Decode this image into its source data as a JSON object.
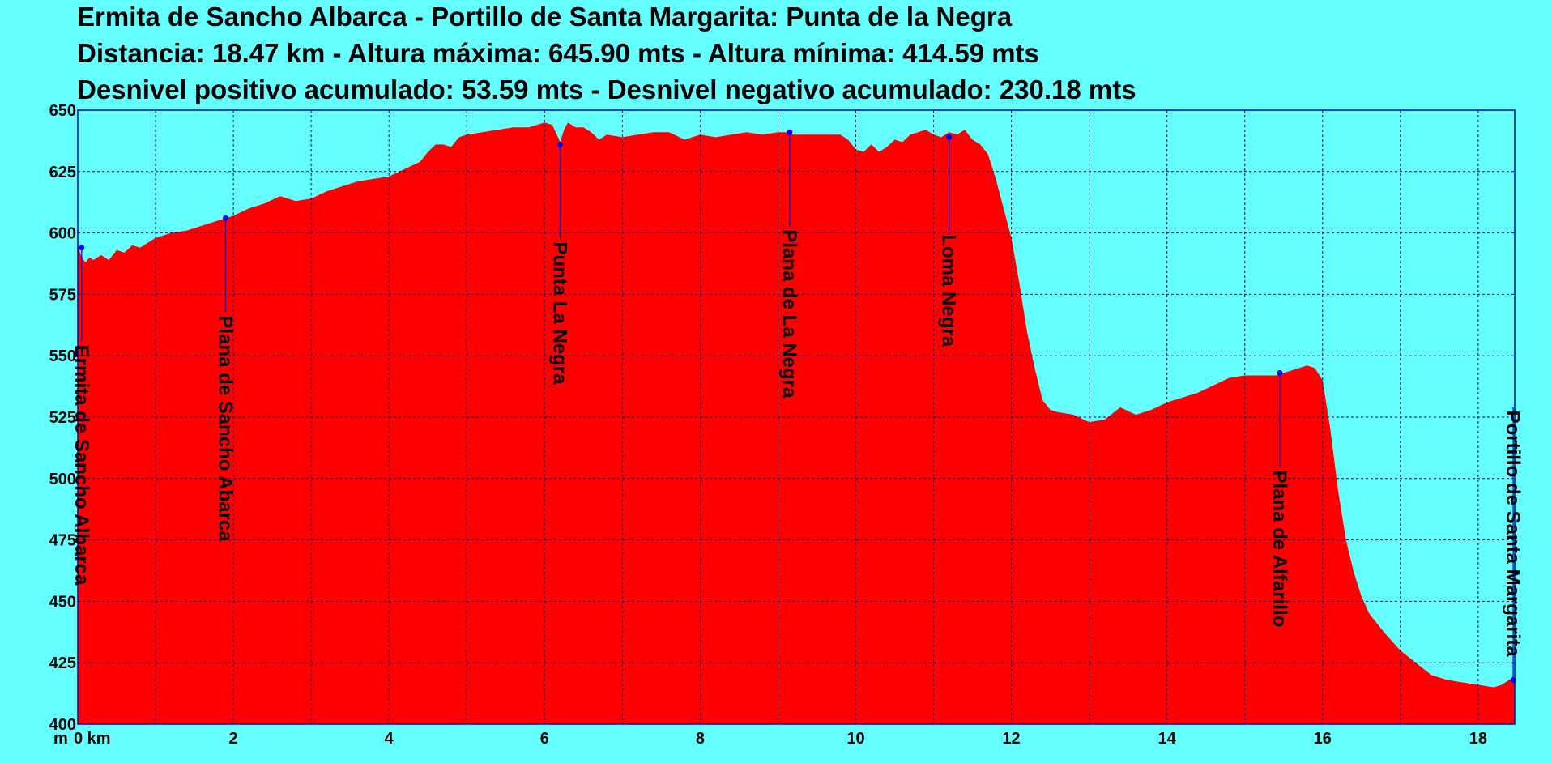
{
  "chart_data": {
    "type": "area",
    "title_lines": [
      "Ermita de Sancho Albarca - Portillo de Santa Margarita: Punta de la Negra",
      "Distancia: 18.47 km - Altura máxima: 645.90 mts - Altura mínima: 414.59 mts",
      "Desnivel positivo acumulado: 53.59 mts - Desnivel negativo acumulado: 230.18 mts"
    ],
    "y_unit_label": "m",
    "x_unit_label": "0 km",
    "xlim": [
      0,
      18.47
    ],
    "ylim": [
      400,
      650
    ],
    "x_ticks": [
      2,
      4,
      6,
      8,
      10,
      12,
      14,
      16,
      18
    ],
    "y_ticks": [
      650,
      625,
      600,
      575,
      550,
      525,
      500,
      475,
      450,
      425,
      400
    ],
    "grid_x": [
      1,
      2,
      3,
      4,
      5,
      6,
      7,
      8,
      9,
      10,
      11,
      12,
      13,
      14,
      15,
      16,
      17,
      18
    ],
    "grid": true,
    "colors": {
      "fill": "#ff0000",
      "background": "#66ffff",
      "grid": "#000080",
      "waypoint": "#0000ff"
    },
    "x": [
      0,
      0.05,
      0.1,
      0.15,
      0.2,
      0.3,
      0.4,
      0.5,
      0.6,
      0.7,
      0.8,
      0.9,
      1.0,
      1.2,
      1.4,
      1.6,
      1.8,
      2.0,
      2.2,
      2.4,
      2.6,
      2.8,
      3.0,
      3.2,
      3.4,
      3.6,
      3.8,
      4.0,
      4.2,
      4.4,
      4.5,
      4.6,
      4.7,
      4.8,
      4.9,
      5.0,
      5.2,
      5.4,
      5.6,
      5.8,
      6.0,
      6.1,
      6.2,
      6.25,
      6.3,
      6.4,
      6.5,
      6.6,
      6.7,
      6.8,
      7.0,
      7.2,
      7.4,
      7.6,
      7.8,
      8.0,
      8.2,
      8.4,
      8.6,
      8.8,
      9.0,
      9.1,
      9.2,
      9.4,
      9.6,
      9.8,
      9.9,
      10.0,
      10.1,
      10.2,
      10.3,
      10.4,
      10.5,
      10.6,
      10.7,
      10.8,
      10.9,
      11.0,
      11.1,
      11.2,
      11.3,
      11.4,
      11.5,
      11.6,
      11.7,
      11.8,
      11.9,
      12.0,
      12.1,
      12.2,
      12.3,
      12.4,
      12.5,
      12.6,
      12.8,
      13.0,
      13.2,
      13.4,
      13.6,
      13.8,
      14.0,
      14.2,
      14.4,
      14.6,
      14.8,
      15.0,
      15.2,
      15.4,
      15.6,
      15.8,
      15.9,
      16.0,
      16.1,
      16.2,
      16.3,
      16.4,
      16.5,
      16.6,
      16.8,
      17.0,
      17.2,
      17.4,
      17.6,
      17.8,
      18.0,
      18.2,
      18.3,
      18.4,
      18.47
    ],
    "y": [
      595,
      590,
      588,
      590,
      589,
      591,
      589,
      593,
      592,
      595,
      594,
      596,
      598,
      600,
      601,
      603,
      605,
      607,
      610,
      612,
      615,
      613,
      614,
      617,
      619,
      621,
      622,
      623,
      626,
      629,
      633,
      636,
      636,
      635,
      639,
      640,
      641,
      642,
      643,
      643,
      645,
      644,
      637,
      642,
      645,
      643,
      643,
      641,
      638,
      640,
      639,
      640,
      641,
      641,
      638,
      640,
      639,
      640,
      641,
      640,
      641,
      641,
      640,
      640,
      640,
      640,
      638,
      634,
      633,
      636,
      633,
      635,
      638,
      637,
      640,
      641,
      642,
      640,
      639,
      641,
      640,
      642,
      638,
      636,
      632,
      622,
      610,
      598,
      580,
      560,
      545,
      532,
      528,
      527,
      526,
      523,
      524,
      529,
      526,
      528,
      531,
      533,
      535,
      538,
      541,
      542,
      542,
      542,
      544,
      546,
      545,
      540,
      520,
      495,
      475,
      462,
      452,
      445,
      437,
      430,
      425,
      420,
      418,
      417,
      416,
      415,
      416,
      418,
      419
    ],
    "waypoints": [
      {
        "name": "Ermita de Sancho Albarca",
        "km": 0.05,
        "alt": 594
      },
      {
        "name": "Plana de Sancho Abarca",
        "km": 1.9,
        "alt": 606
      },
      {
        "name": "Punta La Negra",
        "km": 6.2,
        "alt": 636
      },
      {
        "name": "Plana de La Negra",
        "km": 9.15,
        "alt": 641
      },
      {
        "name": "Loma Negra",
        "km": 11.2,
        "alt": 639
      },
      {
        "name": "Plana de Alfarillo",
        "km": 15.45,
        "alt": 543
      },
      {
        "name": "Portillo de Santa Margarita",
        "km": 18.45,
        "alt": 418
      }
    ]
  }
}
